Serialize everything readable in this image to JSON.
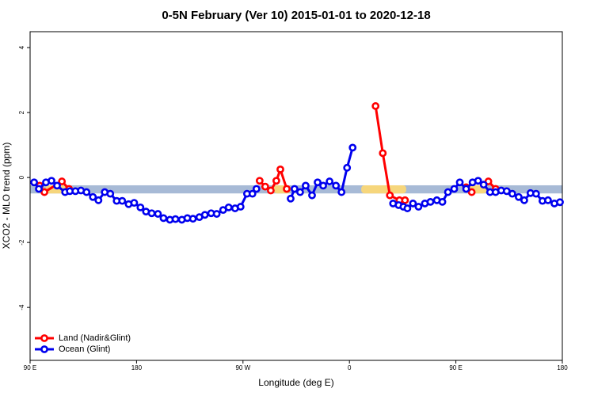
{
  "chart_data": {
    "type": "line",
    "title": "0-5N February (Ver 10)   2015-01-01 to 2020-12-18",
    "x_label": "Longitude (deg E)",
    "y_label": "XCO2 - MLO trend (ppm)",
    "xlim": [
      90,
      540
    ],
    "ylim": [
      -5.63,
      4.49
    ],
    "xticks": [
      {
        "value": 90,
        "label": "90 E"
      },
      180,
      {
        "value": 270,
        "label": "90 W"
      },
      {
        "value": 360,
        "label": "0"
      },
      {
        "value": 450,
        "label": "90 E"
      },
      {
        "value": 540,
        "label": "180"
      }
    ],
    "yticks": [
      -4,
      -2,
      0,
      2,
      4
    ],
    "legend": "bottomleft",
    "band": {
      "range": [
        -0.49,
        -0.24
      ],
      "color": "#a7bad6",
      "land_color": "#f6d67c",
      "land_segments": [
        [
          103,
          120
        ],
        [
          296,
          310
        ],
        [
          370,
          408
        ],
        [
          461,
          476
        ]
      ]
    },
    "series": [
      {
        "name": "Land (Nadir&Glint)",
        "color": "#ff0000",
        "x": [
          98.1,
          102.1,
          116.9,
          122.9,
          null,
          284.1,
          288.8,
          293.5,
          298.2,
          301.6,
          307.0,
          null,
          382.1,
          388.2,
          394.2,
          402.3,
          407.0,
          null,
          458.7,
          463.4,
          null,
          477.5,
          483.6
        ],
        "values": [
          -0.25,
          -0.45,
          -0.12,
          -0.35,
          null,
          -0.1,
          -0.28,
          -0.4,
          -0.1,
          0.25,
          -0.35,
          null,
          2.2,
          0.75,
          -0.55,
          -0.7,
          -0.7,
          null,
          -0.3,
          -0.45,
          null,
          -0.12,
          -0.35
        ]
      },
      {
        "name": "Ocean (Glint)",
        "color": "#0000ee",
        "x": [
          93.4,
          97.4,
          103.4,
          108.1,
          112.8,
          119.6,
          123.6,
          128.3,
          133.0,
          137.7,
          143.1,
          147.8,
          153.1,
          157.8,
          163.2,
          167.9,
          173.3,
          178.0,
          183.3,
          188.0,
          192.8,
          198.1,
          202.8,
          208.2,
          212.9,
          218.3,
          223.0,
          227.7,
          233.1,
          237.8,
          243.1,
          247.8,
          253.2,
          257.9,
          263.3,
          268.0,
          273.4,
          278.0,
          281.4,
          null,
          310.3,
          313.6,
          318.3,
          323.0,
          328.4,
          333.1,
          337.8,
          343.2,
          348.6,
          353.3,
          358.0,
          362.7,
          null,
          396.9,
          401.6,
          405.6,
          409.0,
          413.7,
          418.4,
          423.8,
          428.5,
          433.9,
          438.6,
          443.3,
          448.6,
          453.3,
          458.7,
          464.1,
          468.8,
          473.5,
          478.9,
          483.6,
          488.3,
          493.0,
          497.7,
          503.1,
          507.8,
          513.1,
          517.8,
          523.2,
          527.9,
          533.3,
          538.0
        ],
        "values": [
          -0.15,
          -0.35,
          -0.15,
          -0.1,
          -0.25,
          -0.45,
          -0.42,
          -0.42,
          -0.4,
          -0.45,
          -0.6,
          -0.7,
          -0.45,
          -0.5,
          -0.72,
          -0.72,
          -0.82,
          -0.78,
          -0.92,
          -1.05,
          -1.1,
          -1.12,
          -1.25,
          -1.3,
          -1.28,
          -1.3,
          -1.25,
          -1.27,
          -1.22,
          -1.15,
          -1.1,
          -1.12,
          -1.0,
          -0.92,
          -0.95,
          -0.9,
          -0.5,
          -0.5,
          -0.35,
          null,
          -0.65,
          -0.35,
          -0.45,
          -0.25,
          -0.55,
          -0.15,
          -0.25,
          -0.12,
          -0.25,
          -0.45,
          0.3,
          0.92,
          null,
          -0.8,
          -0.85,
          -0.9,
          -0.95,
          -0.8,
          -0.9,
          -0.8,
          -0.75,
          -0.7,
          -0.75,
          -0.45,
          -0.35,
          -0.15,
          -0.35,
          -0.15,
          -0.1,
          -0.22,
          -0.45,
          -0.45,
          -0.4,
          -0.42,
          -0.5,
          -0.6,
          -0.7,
          -0.48,
          -0.5,
          -0.72,
          -0.7,
          -0.8,
          -0.76
        ]
      }
    ]
  }
}
